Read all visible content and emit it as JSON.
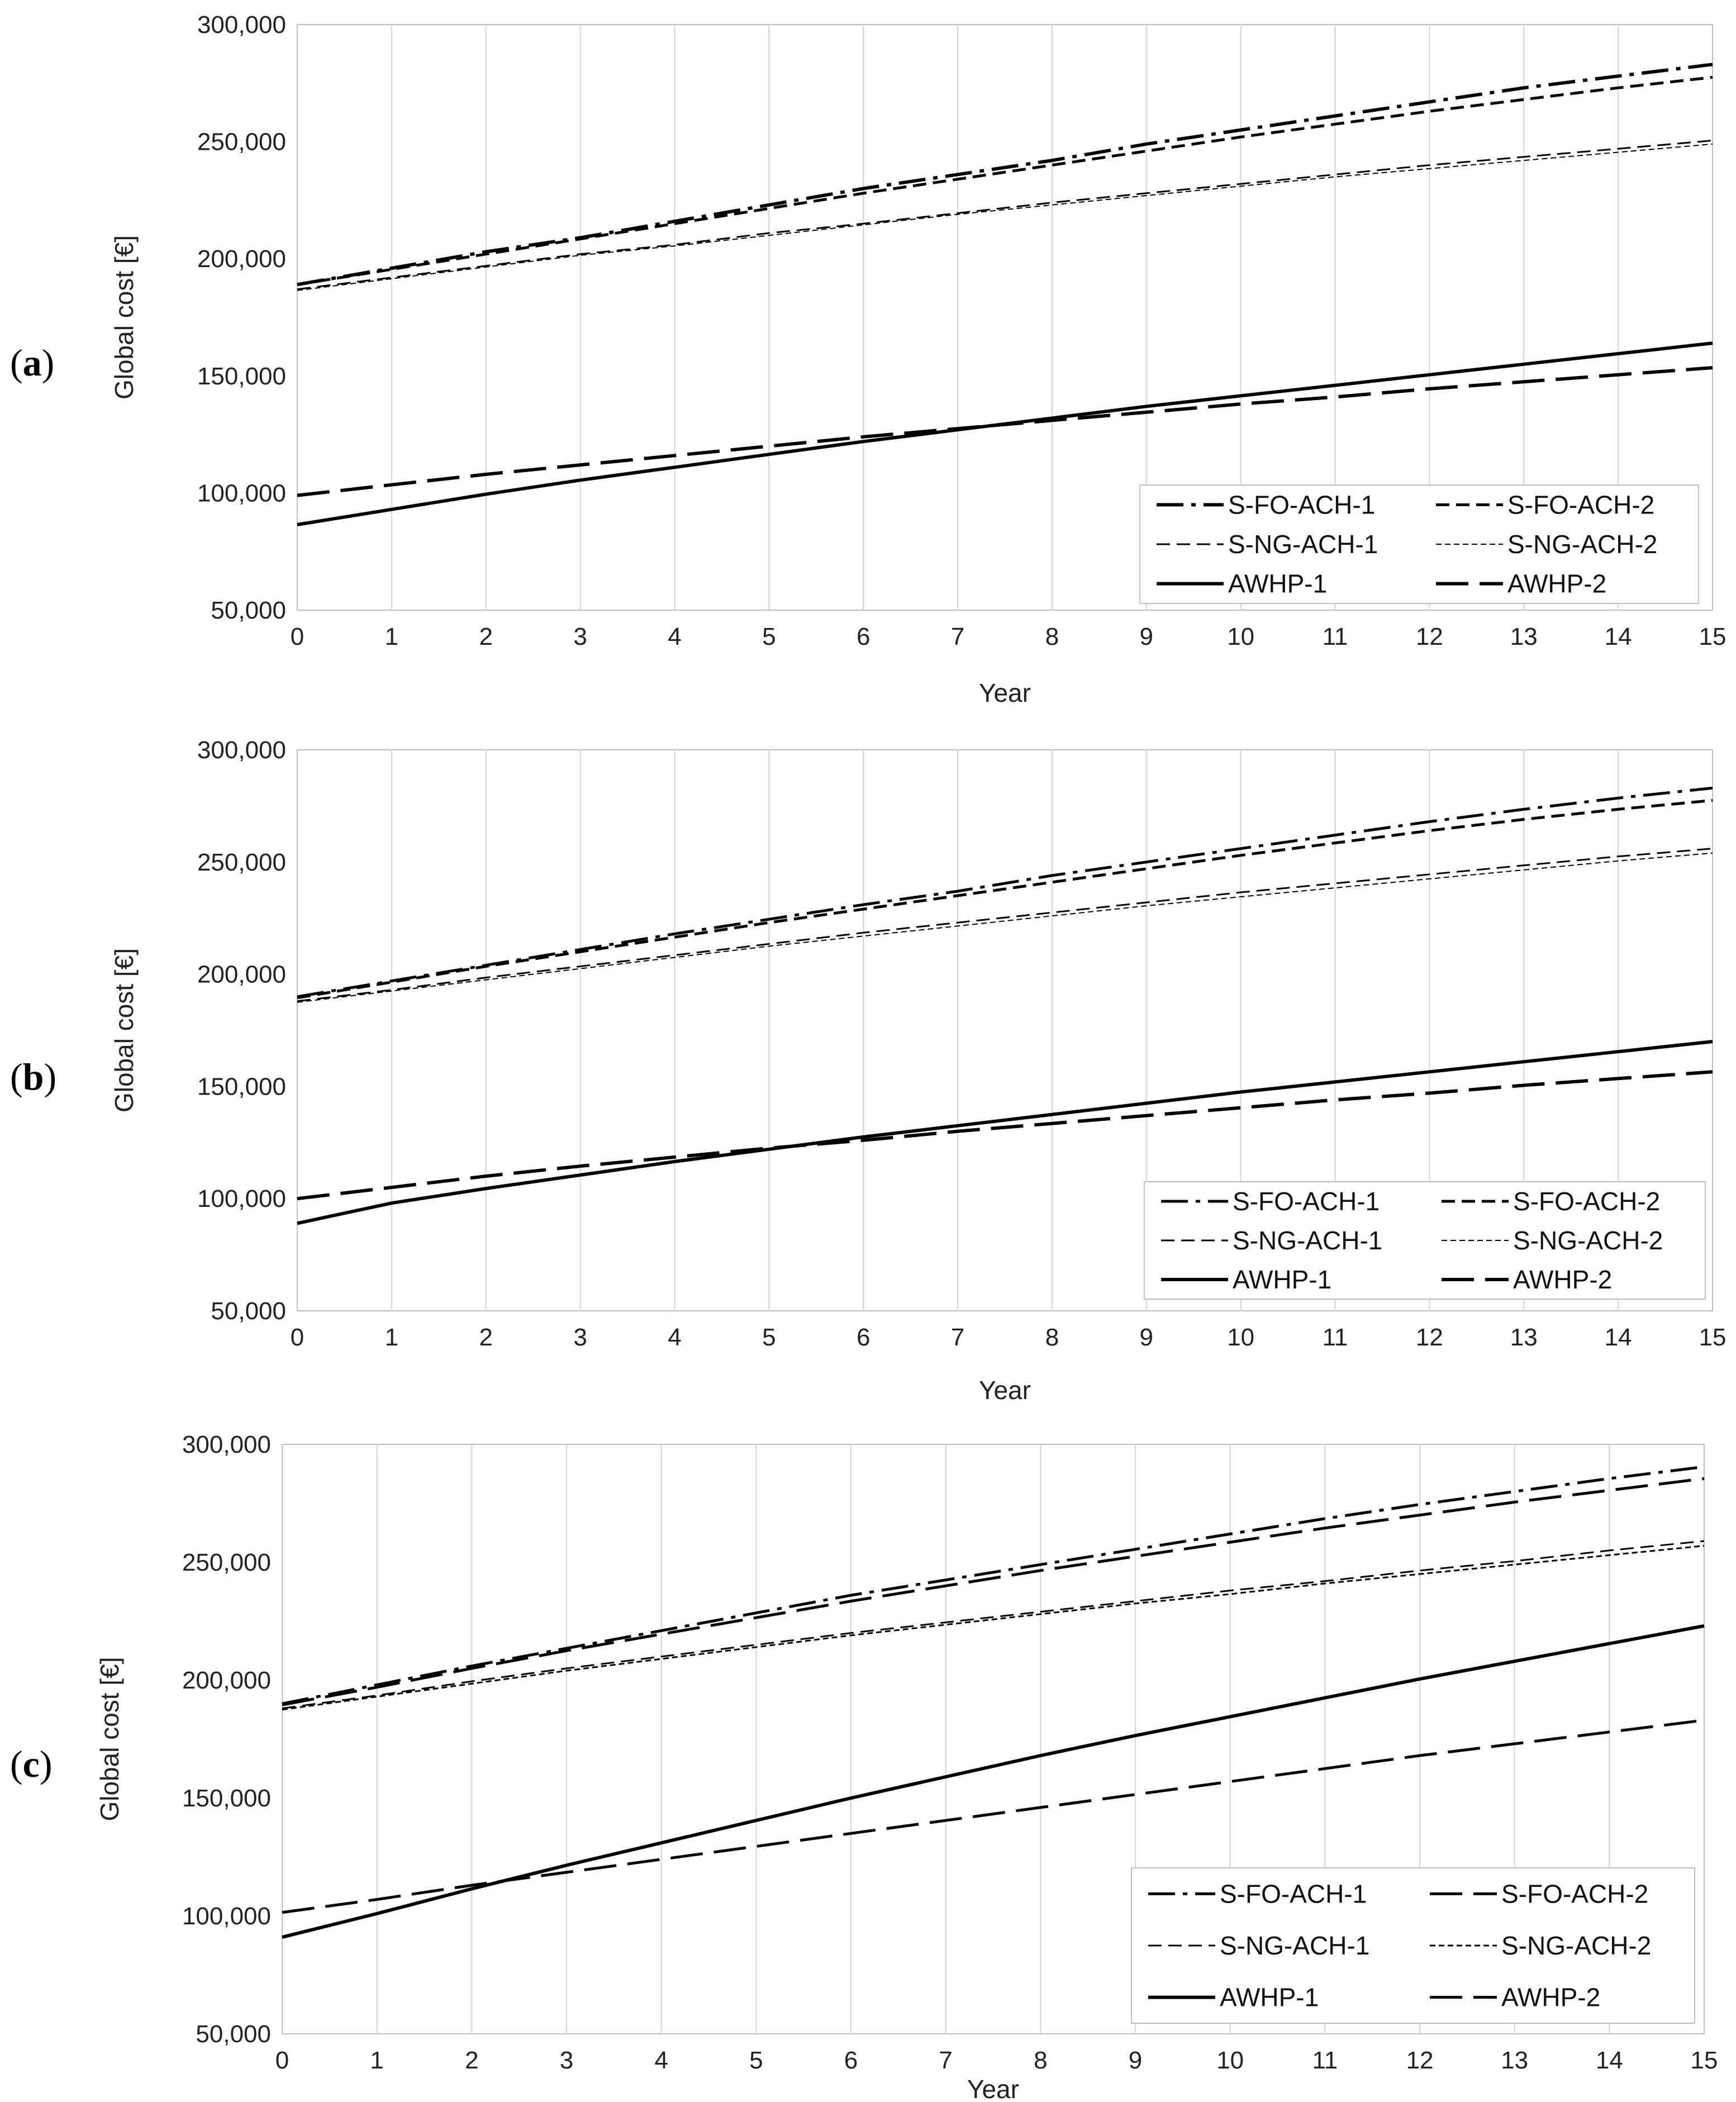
{
  "chart_data": [
    {
      "type": "line",
      "panel_label": {
        "open": "(",
        "letter": "a",
        "close": ")"
      },
      "xlabel": "Year",
      "ylabel": "Global cost [€]",
      "xlim": [
        0,
        15
      ],
      "ylim": [
        50000,
        300000
      ],
      "x_ticks": [
        "0",
        "1",
        "2",
        "3",
        "4",
        "5",
        "6",
        "7",
        "8",
        "9",
        "10",
        "11",
        "12",
        "13",
        "14",
        "15"
      ],
      "y_ticks": [
        "50,000",
        "100,000",
        "150,000",
        "200,000",
        "250,000",
        "300,000"
      ],
      "grid": "vertical",
      "legend_position": "bottom-right",
      "x": [
        0,
        1,
        2,
        3,
        4,
        5,
        6,
        7,
        8,
        9,
        10,
        11,
        12,
        13,
        14,
        15
      ],
      "series": [
        {
          "name": "S-FO-ACH-1",
          "style": "dashdot",
          "width": 6,
          "values": [
            189000,
            196000,
            203000,
            209000,
            216000,
            223000,
            230000,
            236000,
            242000,
            249000,
            255000,
            261000,
            267000,
            273000,
            278000,
            283000
          ]
        },
        {
          "name": "S-FO-ACH-2",
          "style": "dash",
          "width": 5,
          "values": [
            189000,
            195500,
            202000,
            208500,
            215000,
            221500,
            228000,
            234000,
            240000,
            246000,
            252000,
            257500,
            263000,
            268000,
            273000,
            277500
          ]
        },
        {
          "name": "S-NG-ACH-1",
          "style": "dash",
          "width": 3,
          "values": [
            187000,
            192000,
            197000,
            202000,
            206000,
            211000,
            215000,
            219500,
            224000,
            228000,
            232000,
            236000,
            240000,
            243500,
            247000,
            250500
          ]
        },
        {
          "name": "S-NG-ACH-2",
          "style": "dashthin",
          "width": 2,
          "values": [
            186500,
            191500,
            196500,
            201500,
            205500,
            210000,
            214500,
            219000,
            223000,
            227000,
            231000,
            235000,
            238500,
            242000,
            245500,
            249000
          ]
        },
        {
          "name": "AWHP-1",
          "style": "solid",
          "width": 6,
          "values": [
            86500,
            93000,
            99500,
            105500,
            111000,
            116500,
            122000,
            127000,
            132000,
            137000,
            141500,
            146000,
            150500,
            155000,
            159500,
            164000
          ]
        },
        {
          "name": "AWHP-2",
          "style": "longdash",
          "width": 6,
          "values": [
            99000,
            103500,
            108000,
            112000,
            116000,
            120000,
            124000,
            127500,
            131000,
            134500,
            138000,
            141000,
            144500,
            147500,
            150500,
            153500
          ]
        }
      ]
    },
    {
      "type": "line",
      "panel_label": {
        "open": "(",
        "letter": "b",
        "close": ")"
      },
      "xlabel": "Year",
      "ylabel": "Global cost [€]",
      "xlim": [
        0,
        15
      ],
      "ylim": [
        50000,
        300000
      ],
      "x_ticks": [
        "0",
        "1",
        "2",
        "3",
        "4",
        "5",
        "6",
        "7",
        "8",
        "9",
        "10",
        "11",
        "12",
        "13",
        "14",
        "15"
      ],
      "y_ticks": [
        "50,000",
        "100,000",
        "150,000",
        "200,000",
        "250,000",
        "300,000"
      ],
      "grid": "vertical",
      "legend_position": "bottom-right",
      "x": [
        0,
        1,
        2,
        3,
        4,
        5,
        6,
        7,
        8,
        9,
        10,
        11,
        12,
        13,
        14,
        15
      ],
      "series": [
        {
          "name": "S-FO-ACH-1",
          "style": "dashdot",
          "width": 5,
          "values": [
            190000,
            197000,
            204000,
            211000,
            218000,
            224500,
            231000,
            237000,
            244000,
            250000,
            256000,
            262000,
            268000,
            273500,
            278500,
            283000
          ]
        },
        {
          "name": "S-FO-ACH-2",
          "style": "dash",
          "width": 5,
          "values": [
            189500,
            196500,
            203500,
            210000,
            216500,
            223000,
            229000,
            235000,
            241000,
            247000,
            253000,
            258500,
            264000,
            269000,
            273500,
            277500
          ]
        },
        {
          "name": "S-NG-ACH-1",
          "style": "dash",
          "width": 3,
          "values": [
            188000,
            193000,
            198500,
            203500,
            208500,
            213500,
            218500,
            223000,
            227500,
            232000,
            236500,
            240500,
            244500,
            248500,
            252500,
            256000
          ]
        },
        {
          "name": "S-NG-ACH-2",
          "style": "dashthin",
          "width": 2,
          "values": [
            187500,
            192500,
            197500,
            202500,
            207500,
            212500,
            217000,
            221500,
            226000,
            230500,
            234500,
            238500,
            242500,
            246500,
            250500,
            254000
          ]
        },
        {
          "name": "AWHP-1",
          "style": "solid",
          "width": 6,
          "values": [
            89000,
            98000,
            104500,
            110500,
            116500,
            122000,
            127500,
            132500,
            137500,
            142500,
            147500,
            152000,
            156500,
            161000,
            165500,
            170000
          ]
        },
        {
          "name": "AWHP-2",
          "style": "longdash",
          "width": 6,
          "values": [
            100000,
            105000,
            110000,
            114500,
            118500,
            122500,
            126000,
            130000,
            133500,
            137000,
            140500,
            144000,
            147000,
            150500,
            153500,
            156500
          ]
        }
      ]
    },
    {
      "type": "line",
      "panel_label": {
        "open": "(",
        "letter": "c",
        "close": ")"
      },
      "xlabel": "Year",
      "ylabel": "Global cost [€]",
      "xlim": [
        0,
        15
      ],
      "ylim": [
        50000,
        300000
      ],
      "x_ticks": [
        "0",
        "1",
        "2",
        "3",
        "4",
        "5",
        "6",
        "7",
        "8",
        "9",
        "10",
        "11",
        "12",
        "13",
        "14",
        "15"
      ],
      "y_ticks": [
        "50,000",
        "100,000",
        "150,000",
        "200,000",
        "250,000",
        "300,000"
      ],
      "grid": "vertical",
      "legend_position": "bottom-right",
      "x": [
        0,
        1,
        2,
        3,
        4,
        5,
        6,
        7,
        8,
        9,
        10,
        11,
        12,
        13,
        14,
        15
      ],
      "series": [
        {
          "name": "S-FO-ACH-1",
          "style": "dashdot",
          "width": 5,
          "values": [
            190000,
            198000,
            206000,
            213500,
            221000,
            228500,
            236000,
            242500,
            249000,
            255500,
            262000,
            268500,
            274500,
            280000,
            285500,
            290500
          ]
        },
        {
          "name": "S-FO-ACH-2",
          "style": "longdash",
          "width": 5,
          "values": [
            189500,
            197000,
            205000,
            212500,
            219500,
            226500,
            233500,
            240000,
            246500,
            252500,
            258500,
            264500,
            270000,
            275500,
            280500,
            285500
          ]
        },
        {
          "name": "S-NG-ACH-1",
          "style": "dash",
          "width": 3,
          "values": [
            188000,
            193500,
            199500,
            205000,
            210000,
            215000,
            220000,
            224500,
            229000,
            233500,
            238000,
            242000,
            246500,
            250500,
            255000,
            259000
          ]
        },
        {
          "name": "S-NG-ACH-2",
          "style": "dashthin",
          "width": 3,
          "values": [
            187500,
            193000,
            198500,
            204000,
            209000,
            214000,
            219000,
            223500,
            228000,
            232500,
            236500,
            241000,
            245000,
            249000,
            253000,
            257000
          ]
        },
        {
          "name": "AWHP-1",
          "style": "solid",
          "width": 6,
          "values": [
            91000,
            101000,
            111500,
            121500,
            131000,
            140500,
            150000,
            159000,
            168000,
            176500,
            184500,
            192500,
            200500,
            208000,
            215500,
            223000
          ]
        },
        {
          "name": "AWHP-2",
          "style": "longdash",
          "width": 5,
          "values": [
            101500,
            107000,
            113000,
            118500,
            124000,
            129500,
            135000,
            140500,
            146000,
            151500,
            157000,
            162500,
            168000,
            173000,
            178000,
            183000
          ]
        }
      ]
    }
  ]
}
